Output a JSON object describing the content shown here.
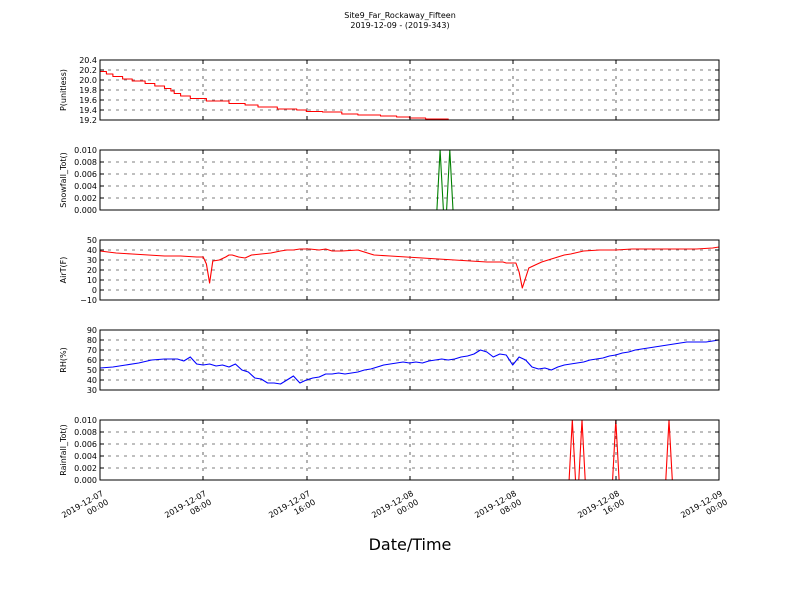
{
  "figure": {
    "title": "Site9_Far_Rockaway_Fifteen",
    "subtitle": "2019-12-09 - (2019-343)",
    "xlabel": "Date/Time"
  },
  "chart_data": [
    {
      "type": "line",
      "ylabel": "P(unitless)",
      "ylim": [
        19.2,
        20.4
      ],
      "yticks": [
        "20.4",
        "20.2",
        "20.0",
        "19.8",
        "19.6",
        "19.4",
        "19.2"
      ],
      "ytick_values": [
        20.4,
        20.2,
        20.0,
        19.8,
        19.6,
        19.4,
        19.2
      ],
      "xlim": [
        "2019-12-07 00:00",
        "2019-12-09 00:00"
      ],
      "grid": true,
      "series": [
        {
          "color": "#ff0000",
          "x": [
            0,
            2,
            2,
            4,
            4,
            7,
            7,
            10,
            10,
            14,
            14,
            17,
            17,
            20,
            20,
            22,
            22,
            23,
            23,
            25,
            25,
            28,
            28,
            33,
            33,
            40,
            40,
            45,
            45,
            49,
            49,
            55,
            55,
            61,
            61,
            64,
            64,
            69,
            69,
            75,
            75,
            80,
            80,
            87,
            87,
            92,
            92,
            96,
            96,
            101,
            101,
            108,
            108,
            114,
            114,
            122,
            122,
            129,
            129,
            136,
            136,
            144,
            144,
            149,
            149,
            154,
            154,
            164,
            164,
            171,
            171,
            181,
            181,
            192
          ],
          "y": [
            20.17,
            20.17,
            20.12,
            20.12,
            20.07,
            20.07,
            20.02,
            20.02,
            19.98,
            19.98,
            19.93,
            19.93,
            19.88,
            19.88,
            19.83,
            19.83,
            19.78,
            19.78,
            19.73,
            19.73,
            19.68,
            19.68,
            19.63,
            19.63,
            19.58,
            19.58,
            19.53,
            19.53,
            19.5,
            19.5,
            19.46,
            19.46,
            19.42,
            19.42,
            19.4,
            19.4,
            19.37,
            19.37,
            19.36,
            19.36,
            19.32,
            19.32,
            19.3,
            19.3,
            19.28,
            19.28,
            19.26,
            19.26,
            19.24,
            19.24,
            19.22,
            19.22,
            19.2,
            19.2,
            19.2,
            19.2,
            19.2,
            19.2,
            19.2,
            19.2,
            19.2,
            19.2,
            19.2,
            19.2,
            19.2,
            19.2,
            19.2,
            19.2,
            19.2,
            19.2,
            19.2,
            19.2,
            19.2,
            19.2
          ]
        }
      ]
    },
    {
      "type": "line",
      "ylabel": "Snowfall_Tot()",
      "ylim": [
        0.0,
        0.01
      ],
      "yticks": [
        "0.010",
        "0.008",
        "0.006",
        "0.004",
        "0.002",
        "0.000"
      ],
      "ytick_values": [
        0.01,
        0.008,
        0.006,
        0.004,
        0.002,
        0.0
      ],
      "xlim": [
        "2019-12-07 00:00",
        "2019-12-09 00:00"
      ],
      "grid": true,
      "series": [
        {
          "color": "#008000",
          "x": [
            0,
            104.5,
            105.5,
            106.5,
            107.5,
            108.5,
            109.5,
            110.5,
            192
          ],
          "y": [
            0,
            0,
            0.01,
            0,
            0,
            0.01,
            0,
            0,
            0
          ]
        }
      ]
    },
    {
      "type": "line",
      "ylabel": "AirT(F)",
      "ylim": [
        -10,
        50
      ],
      "yticks": [
        "50",
        "40",
        "30",
        "20",
        "10",
        "0",
        "−10"
      ],
      "ytick_values": [
        50,
        40,
        30,
        20,
        10,
        0,
        -10
      ],
      "xlim": [
        "2019-12-07 00:00",
        "2019-12-09 00:00"
      ],
      "grid": true,
      "series": [
        {
          "color": "#ff0000",
          "x": [
            0,
            5,
            10,
            15,
            20,
            25,
            30,
            31,
            32,
            33,
            34,
            35,
            37,
            39,
            40,
            41,
            43,
            45,
            47,
            50,
            53,
            56,
            58,
            60,
            62,
            65,
            68,
            70,
            72,
            75,
            80,
            85,
            90,
            95,
            100,
            105,
            110,
            115,
            120,
            125,
            126,
            127,
            128,
            129,
            130,
            131,
            133,
            135,
            137,
            139,
            141,
            143,
            144,
            146,
            150,
            155,
            160,
            165,
            170,
            175,
            180,
            185,
            190,
            192
          ],
          "y": [
            39,
            37,
            36,
            35,
            34,
            34,
            33,
            33,
            33,
            26,
            7,
            29,
            30,
            33,
            35,
            35,
            33,
            32,
            35,
            36,
            37,
            39,
            40,
            40,
            41,
            41,
            40,
            41,
            39,
            39,
            40,
            35,
            34,
            33,
            32,
            31,
            30,
            29,
            28,
            28,
            27,
            27,
            27,
            27,
            18,
            2,
            22,
            25,
            28,
            30,
            32,
            34,
            35,
            36,
            39,
            40,
            40,
            41,
            41,
            41,
            41,
            41,
            42,
            43
          ]
        }
      ]
    },
    {
      "type": "line",
      "ylabel": "RH(%)",
      "ylim": [
        30,
        90
      ],
      "yticks": [
        "90",
        "80",
        "70",
        "60",
        "50",
        "40",
        "30"
      ],
      "ytick_values": [
        90,
        80,
        70,
        60,
        50,
        40,
        30
      ],
      "xlim": [
        "2019-12-07 00:00",
        "2019-12-09 00:00"
      ],
      "grid": true,
      "series": [
        {
          "color": "#0000ff",
          "x": [
            0,
            4,
            8,
            12,
            16,
            20,
            24,
            26,
            28,
            30,
            32,
            34,
            36,
            38,
            40,
            42,
            44,
            46,
            48,
            50,
            52,
            54,
            56,
            58,
            60,
            62,
            64,
            66,
            68,
            70,
            72,
            74,
            76,
            78,
            80,
            82,
            84,
            86,
            88,
            90,
            92,
            94,
            96,
            98,
            100,
            102,
            104,
            106,
            108,
            110,
            112,
            114,
            116,
            118,
            120,
            122,
            124,
            126,
            128,
            130,
            132,
            134,
            136,
            138,
            140,
            142,
            144,
            146,
            148,
            150,
            152,
            154,
            156,
            158,
            160,
            162,
            164,
            166,
            168,
            170,
            172,
            174,
            176,
            178,
            180,
            182,
            184,
            186,
            188,
            190,
            192
          ],
          "y": [
            52,
            53,
            55,
            57,
            60,
            61,
            61,
            59,
            63,
            56,
            55,
            56,
            54,
            55,
            53,
            56,
            50,
            48,
            42,
            41,
            37,
            37,
            36,
            40,
            44,
            37,
            40,
            42,
            43,
            46,
            46,
            47,
            46,
            47,
            48,
            50,
            51,
            53,
            55,
            56,
            57,
            58,
            57,
            58,
            57,
            59,
            60,
            61,
            60,
            61,
            63,
            64,
            66,
            70,
            68,
            63,
            66,
            65,
            55,
            63,
            60,
            53,
            51,
            52,
            50,
            53,
            55,
            56,
            57,
            58,
            60,
            61,
            62,
            64,
            65,
            67,
            68,
            70,
            71,
            72,
            73,
            74,
            75,
            76,
            77,
            78,
            78,
            78,
            78,
            79,
            80
          ]
        }
      ]
    },
    {
      "type": "line",
      "ylabel": "Rainfall_Tot()",
      "ylim": [
        0.0,
        0.01
      ],
      "yticks": [
        "0.010",
        "0.008",
        "0.006",
        "0.004",
        "0.002",
        "0.000"
      ],
      "ytick_values": [
        0.01,
        0.008,
        0.006,
        0.004,
        0.002,
        0.0
      ],
      "xlim": [
        "2019-12-07 00:00",
        "2019-12-09 00:00"
      ],
      "xticks": [
        "2019-12-07\n00:00",
        "2019-12-07\n08:00",
        "2019-12-07\n16:00",
        "2019-12-08\n00:00",
        "2019-12-08\n08:00",
        "2019-12-08\n16:00",
        "2019-12-09\n00:00"
      ],
      "grid": true,
      "series": [
        {
          "color": "#ff0000",
          "x": [
            0,
            145.5,
            146.5,
            147.5,
            148.5,
            149.5,
            150.5,
            151.5,
            159,
            160,
            161,
            175.5,
            176.5,
            177.5,
            192
          ],
          "y": [
            0,
            0,
            0.01,
            0,
            0,
            0.01,
            0,
            0,
            0,
            0.01,
            0,
            0,
            0.01,
            0,
            0
          ]
        }
      ]
    }
  ]
}
